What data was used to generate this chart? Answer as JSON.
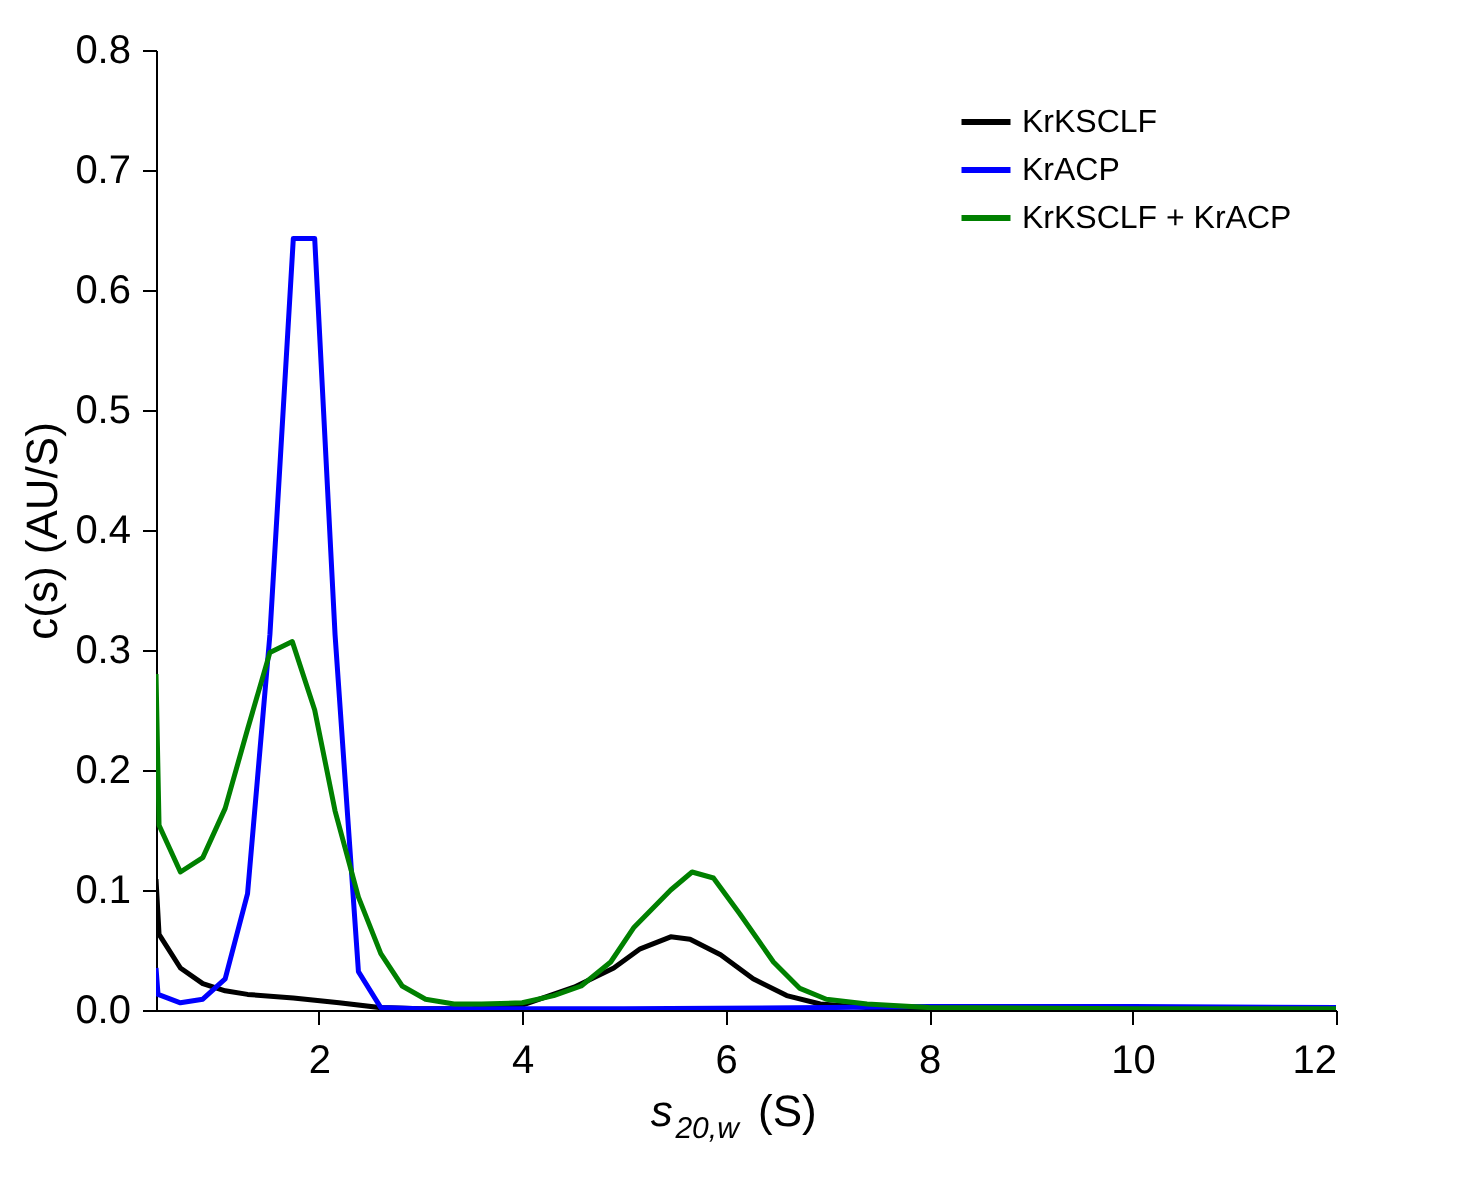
{
  "chart_data": {
    "type": "line",
    "xlabel": "s$_{20,w}$ (S)",
    "ylabel": "c(s) (AU/S)",
    "xlim": [
      0.4,
      12
    ],
    "xticks": [
      2,
      4,
      6,
      8,
      10,
      12
    ],
    "ylim": [
      0,
      0.8
    ],
    "yticks": [
      {
        "value": 0,
        "label": "0.0"
      },
      0.1,
      0.2,
      0.3,
      0.4,
      0.5,
      0.6,
      0.7,
      0.8
    ],
    "grid": false,
    "legend": "top right",
    "line_style": "solid",
    "marker": "none",
    "series": [
      {
        "name": "KrKSCLF",
        "color": "#000000",
        "x": [
          0.4,
          0.43,
          0.64,
          0.86,
          1.08,
          1.3,
          1.75,
          2.2,
          2.6,
          3.0,
          3.5,
          4.0,
          4.51,
          4.9,
          5.16,
          5.46,
          5.65,
          5.95,
          6.27,
          6.6,
          6.93,
          7.39,
          8.0,
          10.0,
          12.0
        ],
        "values": [
          0.109,
          0.063,
          0.035,
          0.022,
          0.016,
          0.013,
          0.01,
          0.006,
          0.002,
          0.001,
          0.001,
          0.004,
          0.019,
          0.035,
          0.051,
          0.061,
          0.059,
          0.046,
          0.026,
          0.012,
          0.005,
          0.002,
          0.001,
          0.001,
          0.001
        ]
      },
      {
        "name": "KrACP",
        "color": "#0000ff",
        "x": [
          0.4,
          0.42,
          0.64,
          0.86,
          1.08,
          1.3,
          1.52,
          1.75,
          1.96,
          2.16,
          2.39,
          2.61,
          3.0,
          5.0,
          7.0,
          8.0,
          10.0,
          12.0
        ],
        "values": [
          0.035,
          0.013,
          0.006,
          0.009,
          0.026,
          0.097,
          0.313,
          0.643,
          0.643,
          0.313,
          0.032,
          0.002,
          0.001,
          0.001,
          0.002,
          0.003,
          0.003,
          0.002
        ]
      },
      {
        "name": "KrKSCLF + KrACP",
        "color": "#008000",
        "x": [
          0.4,
          0.43,
          0.64,
          0.86,
          1.08,
          1.3,
          1.52,
          1.74,
          1.96,
          2.16,
          2.39,
          2.61,
          2.82,
          3.05,
          3.33,
          3.6,
          4.0,
          4.31,
          4.58,
          4.87,
          5.1,
          5.46,
          5.67,
          5.88,
          6.14,
          6.47,
          6.73,
          6.99,
          7.39,
          8.0,
          10.0,
          12.0
        ],
        "values": [
          0.28,
          0.154,
          0.115,
          0.127,
          0.168,
          0.234,
          0.298,
          0.307,
          0.25,
          0.166,
          0.094,
          0.047,
          0.02,
          0.009,
          0.005,
          0.005,
          0.006,
          0.012,
          0.02,
          0.04,
          0.069,
          0.1,
          0.115,
          0.11,
          0.08,
          0.04,
          0.018,
          0.009,
          0.005,
          0.002,
          0.001,
          0.001
        ]
      }
    ]
  }
}
